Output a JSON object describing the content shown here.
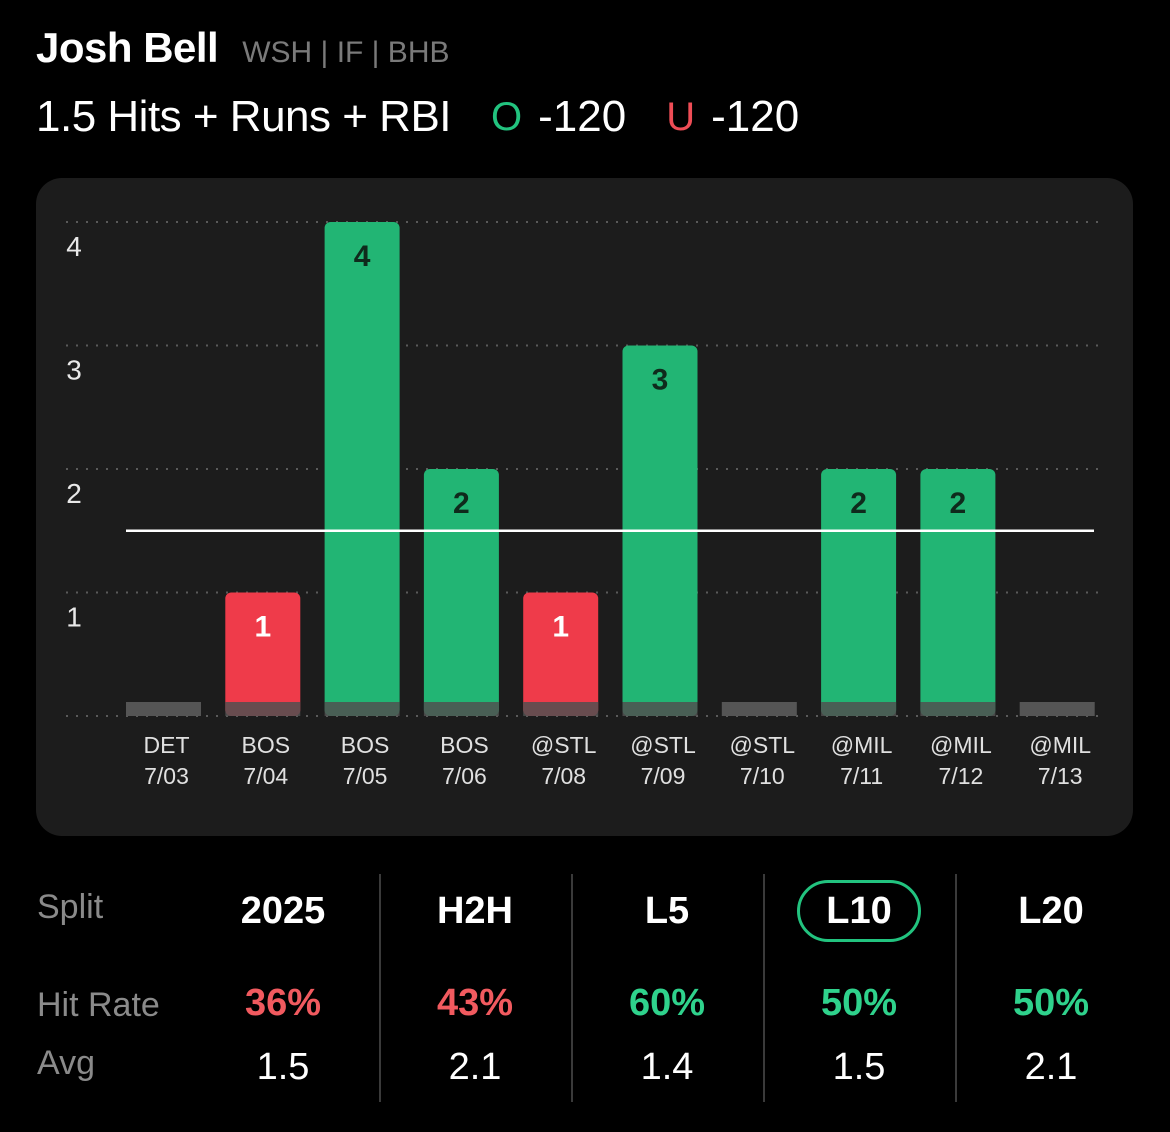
{
  "player": {
    "name": "Josh Bell",
    "meta": "WSH | IF | BHB"
  },
  "prop": {
    "label": "1.5 Hits + Runs + RBI",
    "over_letter": "O",
    "over_price": "-120",
    "under_letter": "U",
    "under_price": "-120"
  },
  "colors": {
    "over": "#22b574",
    "under": "#ef3b4a",
    "zero": "#555555"
  },
  "chart_data": {
    "type": "bar",
    "categories": [
      {
        "team": "DET",
        "date": "7/03"
      },
      {
        "team": "BOS",
        "date": "7/04"
      },
      {
        "team": "BOS",
        "date": "7/05"
      },
      {
        "team": "BOS",
        "date": "7/06"
      },
      {
        "team": "@STL",
        "date": "7/08"
      },
      {
        "team": "@STL",
        "date": "7/09"
      },
      {
        "team": "@STL",
        "date": "7/10"
      },
      {
        "team": "@MIL",
        "date": "7/11"
      },
      {
        "team": "@MIL",
        "date": "7/12"
      },
      {
        "team": "@MIL",
        "date": "7/13"
      }
    ],
    "values": [
      0,
      1,
      4,
      2,
      1,
      3,
      0,
      2,
      2,
      0
    ],
    "line": 1.5,
    "yticks": [
      1,
      2,
      3,
      4
    ],
    "ylim": [
      0,
      4
    ],
    "grid": "dotted horizontal"
  },
  "splits": {
    "row_labels": {
      "split": "Split",
      "hit_rate": "Hit Rate",
      "avg": "Avg"
    },
    "columns": [
      {
        "label": "2025",
        "hit_rate": "36%",
        "avg": "1.5",
        "tone": "red",
        "active": false
      },
      {
        "label": "H2H",
        "hit_rate": "43%",
        "avg": "2.1",
        "tone": "red",
        "active": false
      },
      {
        "label": "L5",
        "hit_rate": "60%",
        "avg": "1.4",
        "tone": "green",
        "active": false
      },
      {
        "label": "L10",
        "hit_rate": "50%",
        "avg": "1.5",
        "tone": "green",
        "active": true
      },
      {
        "label": "L20",
        "hit_rate": "50%",
        "avg": "2.1",
        "tone": "green",
        "active": false
      }
    ]
  }
}
